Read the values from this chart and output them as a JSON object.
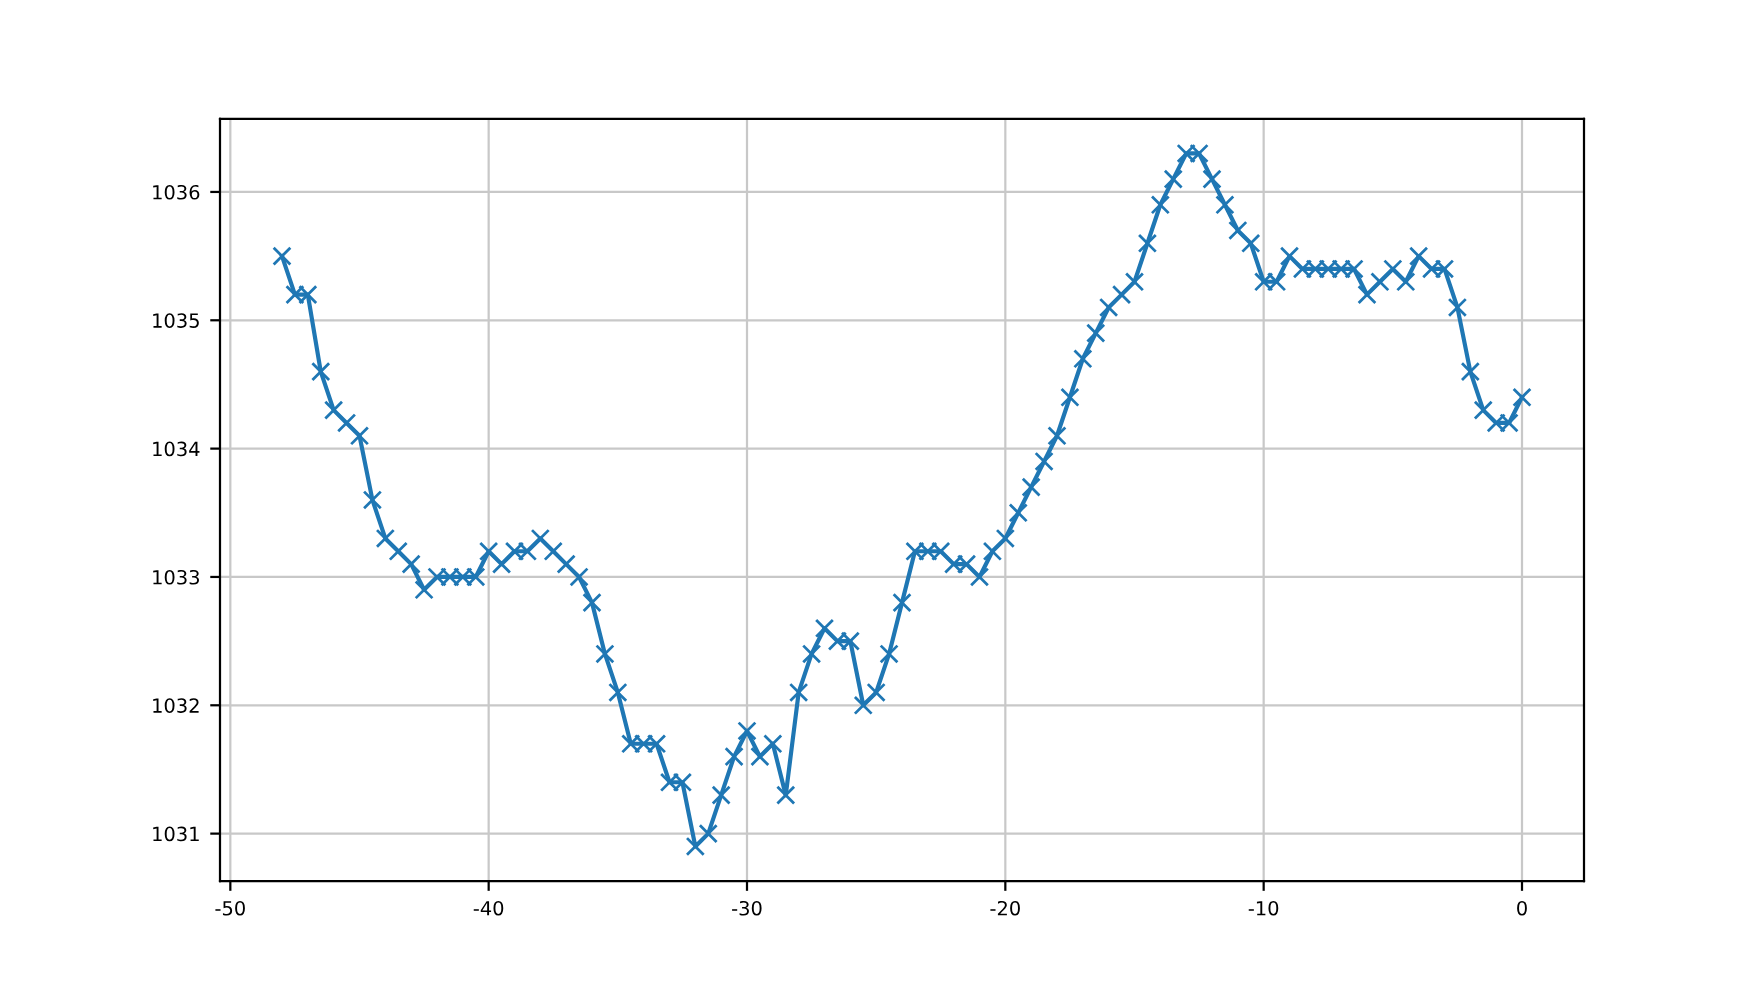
{
  "chart_data": {
    "type": "line",
    "marker": "cross",
    "line_style": "solid",
    "grid": true,
    "x": [
      -48,
      -47.5,
      -47,
      -46.5,
      -46,
      -45.5,
      -45,
      -44.5,
      -44,
      -43.5,
      -43,
      -42.5,
      -42,
      -41.5,
      -41,
      -40.5,
      -40,
      -39.5,
      -39,
      -38.5,
      -38,
      -37.5,
      -37,
      -36.5,
      -36,
      -35.5,
      -35,
      -34.5,
      -34,
      -33.5,
      -33,
      -32.5,
      -32,
      -31.5,
      -31,
      -30.5,
      -30,
      -29.5,
      -29,
      -28.5,
      -28,
      -27.5,
      -27,
      -26.5,
      -26,
      -25.5,
      -25,
      -24.5,
      -24,
      -23.5,
      -23,
      -22.5,
      -22,
      -21.5,
      -21,
      -20.5,
      -20,
      -19.5,
      -19,
      -18.5,
      -18,
      -17.5,
      -17,
      -16.5,
      -16,
      -15.5,
      -15,
      -14.5,
      -14,
      -13.5,
      -13,
      -12.5,
      -12,
      -11.5,
      -11,
      -10.5,
      -10,
      -9.5,
      -9,
      -8.5,
      -8,
      -7.5,
      -7,
      -6.5,
      -6,
      -5.5,
      -5,
      -4.5,
      -4,
      -3.5,
      -3,
      -2.5,
      -2,
      -1.5,
      -1,
      -0.5,
      0
    ],
    "series": [
      {
        "color": "#1f77b4",
        "values": [
          1035.5,
          1035.2,
          1035.2,
          1034.6,
          1034.3,
          1034.2,
          1034.1,
          1033.6,
          1033.3,
          1033.2,
          1033.1,
          1032.9,
          1033.0,
          1033.0,
          1033.0,
          1033.0,
          1033.2,
          1033.1,
          1033.2,
          1033.2,
          1033.3,
          1033.2,
          1033.1,
          1033.0,
          1032.8,
          1032.4,
          1032.1,
          1031.7,
          1031.7,
          1031.7,
          1031.4,
          1031.4,
          1030.9,
          1031.0,
          1031.3,
          1031.6,
          1031.8,
          1031.6,
          1031.7,
          1031.3,
          1032.1,
          1032.4,
          1032.6,
          1032.5,
          1032.5,
          1032.0,
          1032.1,
          1032.4,
          1032.8,
          1033.2,
          1033.2,
          1033.2,
          1033.1,
          1033.1,
          1033.0,
          1033.2,
          1033.3,
          1033.5,
          1033.7,
          1033.9,
          1034.1,
          1034.4,
          1034.7,
          1034.9,
          1035.1,
          1035.2,
          1035.3,
          1035.6,
          1035.9,
          1036.1,
          1036.3,
          1036.3,
          1036.1,
          1035.9,
          1035.7,
          1035.6,
          1035.3,
          1035.3,
          1035.5,
          1035.4,
          1035.4,
          1035.4,
          1035.4,
          1035.4,
          1035.2,
          1035.3,
          1035.4,
          1035.3,
          1035.5,
          1035.4,
          1035.4,
          1035.1,
          1034.6,
          1034.3,
          1034.2,
          1034.2,
          1034.4
        ]
      }
    ],
    "xlim": [
      -50.4,
      2.4
    ],
    "xticks": [
      -50,
      -40,
      -30,
      -20,
      -10,
      0
    ],
    "ylim": [
      1030.63,
      1036.57
    ],
    "yticks": [
      1031,
      1032,
      1033,
      1034,
      1035,
      1036
    ]
  }
}
